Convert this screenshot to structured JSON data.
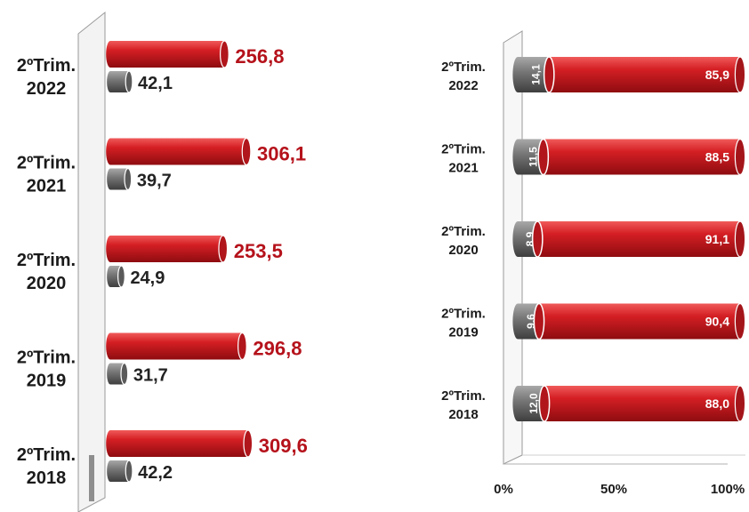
{
  "chart_data": [
    {
      "type": "bar",
      "orientation": "horizontal",
      "categories": [
        "2ºTrim. 2022",
        "2ºTrim. 2021",
        "2ºTrim. 2020",
        "2ºTrim. 2019",
        "2ºTrim. 2018"
      ],
      "series": [
        {
          "values": [
            256.8,
            306.1,
            253.5,
            296.8,
            309.6
          ],
          "labels": [
            "256,8",
            "306,1",
            "253,5",
            "296,8",
            "309,6"
          ],
          "color": "#c8191e",
          "label_color": "#b5121b"
        },
        {
          "values": [
            42.1,
            39.7,
            24.9,
            31.7,
            42.2
          ],
          "labels": [
            "42,1",
            "39,7",
            "24,9",
            "31,7",
            "42,2"
          ],
          "color": "#6e6e6e",
          "label_color": "#222222"
        }
      ],
      "grid": false,
      "legend": "none"
    },
    {
      "type": "bar",
      "orientation": "horizontal",
      "stacked": "percent",
      "categories": [
        "2ºTrim. 2022",
        "2ºTrim. 2021",
        "2ºTrim. 2020",
        "2ºTrim. 2019",
        "2ºTrim. 2018"
      ],
      "series": [
        {
          "values": [
            14.1,
            11.5,
            8.9,
            9.6,
            12.0
          ],
          "labels": [
            "14,1",
            "11,5",
            "8,9",
            "9,6",
            "12,0"
          ],
          "color": "#6e6e6e"
        },
        {
          "values": [
            85.9,
            88.5,
            91.1,
            90.4,
            88.0
          ],
          "labels": [
            "85,9",
            "88,5",
            "91,1",
            "90,4",
            "88,0"
          ],
          "color": "#c8191e"
        }
      ],
      "xlim": [
        0,
        100
      ],
      "xticks": [
        "0%",
        "50%",
        "100%"
      ],
      "grid": false,
      "legend": "none"
    }
  ]
}
